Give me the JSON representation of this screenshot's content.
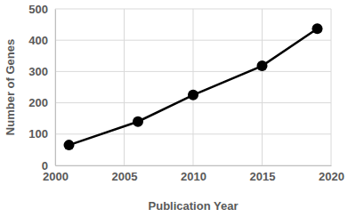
{
  "chart_data": {
    "type": "line",
    "x_label": "Publication Year",
    "y_label": "Number of Genes",
    "x": [
      2001,
      2006,
      2010,
      2015,
      2019
    ],
    "values": [
      65,
      140,
      225,
      318,
      437
    ],
    "color": "#000000",
    "marker": "circle",
    "xlim": [
      2000,
      2020
    ],
    "xticks": [
      2000,
      2005,
      2010,
      2015,
      2020
    ],
    "ylim": [
      0,
      500
    ],
    "yticks": [
      0,
      100,
      200,
      300,
      400,
      500
    ],
    "grid": true
  }
}
